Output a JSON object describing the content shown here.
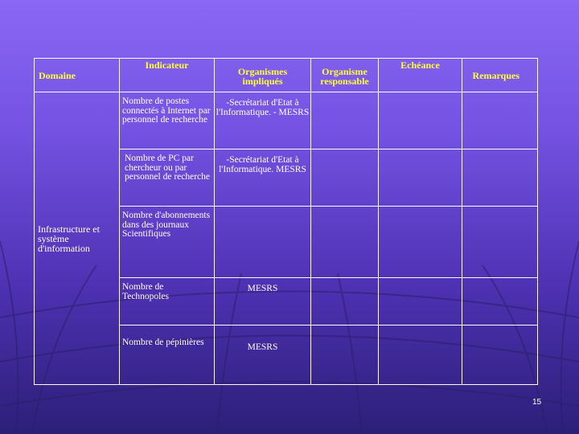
{
  "table": {
    "headers": {
      "domaine": "Domaine",
      "indicateur": "Indicateur",
      "organismes_impliques": "Organismes impliqués",
      "organisme_responsable": "Organisme responsable",
      "echeance": "Echéance",
      "remarques": "Remarques"
    },
    "domaine_value": "Infrastructure et système d'information",
    "rows": [
      {
        "indicateur": "Nombre de postes connectés à Internet par personnel de recherche",
        "organismes": "-Secrétariat d'Etat à l'Informatique. - MESRS"
      },
      {
        "indicateur": "Nombre de PC par chercheur ou par personnel de recherche",
        "organismes": "-Secrétariat d'Etat à l'Informatique. MESRS"
      },
      {
        "indicateur": "Nombre d'abonnements dans des journaux Scientifiques",
        "organismes": ""
      },
      {
        "indicateur": "Nombre de Technopoles",
        "organismes": "MESRS"
      },
      {
        "indicateur": "Nombre de pépinières",
        "organismes": "MESRS"
      }
    ]
  },
  "slide_number": "15"
}
